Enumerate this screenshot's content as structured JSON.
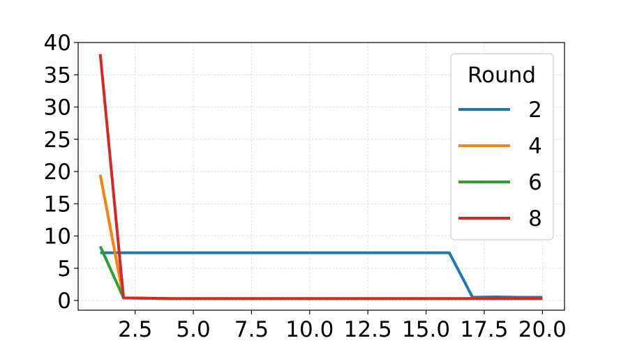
{
  "chart_data": {
    "type": "line",
    "title": "",
    "xlabel": "",
    "ylabel": "",
    "xlim": [
      0.05,
      20.95
    ],
    "ylim": [
      -1.5,
      40.0
    ],
    "xticks": [
      2.5,
      5.0,
      7.5,
      10.0,
      12.5,
      15.0,
      17.5,
      20.0
    ],
    "xtick_labels": [
      "2.5",
      "5.0",
      "7.5",
      "10.0",
      "12.5",
      "15.0",
      "17.5",
      "20.0"
    ],
    "yticks": [
      0,
      5,
      10,
      15,
      20,
      25,
      30,
      35,
      40
    ],
    "ytick_labels": [
      "0",
      "5",
      "10",
      "15",
      "20",
      "25",
      "30",
      "35",
      "40"
    ],
    "grid": true,
    "legend": {
      "title": "Round",
      "placement": "top-right"
    },
    "x": [
      1,
      2,
      3,
      4,
      5,
      6,
      7,
      8,
      9,
      10,
      11,
      12,
      13,
      14,
      15,
      16,
      17,
      18,
      19,
      20
    ],
    "series": [
      {
        "name": "2",
        "color": "#1f77b4",
        "values": [
          7.4,
          7.4,
          7.4,
          7.4,
          7.4,
          7.4,
          7.4,
          7.4,
          7.4,
          7.4,
          7.4,
          7.4,
          7.4,
          7.4,
          7.4,
          7.4,
          0.5,
          0.55,
          0.5,
          0.5
        ]
      },
      {
        "name": "4",
        "color": "#ff7f0e",
        "values": [
          19.5,
          0.4,
          0.35,
          0.3,
          0.3,
          0.3,
          0.3,
          0.3,
          0.3,
          0.3,
          0.3,
          0.3,
          0.3,
          0.3,
          0.3,
          0.3,
          0.3,
          0.3,
          0.3,
          0.3
        ]
      },
      {
        "name": "6",
        "color": "#2ca02c",
        "values": [
          8.4,
          0.4,
          0.35,
          0.3,
          0.3,
          0.3,
          0.3,
          0.3,
          0.3,
          0.3,
          0.3,
          0.3,
          0.3,
          0.3,
          0.3,
          0.3,
          0.3,
          0.3,
          0.3,
          0.3
        ]
      },
      {
        "name": "8",
        "color": "#d62728",
        "values": [
          38.2,
          0.4,
          0.35,
          0.3,
          0.3,
          0.3,
          0.3,
          0.3,
          0.3,
          0.3,
          0.3,
          0.3,
          0.3,
          0.3,
          0.3,
          0.3,
          0.3,
          0.3,
          0.3,
          0.3
        ]
      }
    ]
  }
}
